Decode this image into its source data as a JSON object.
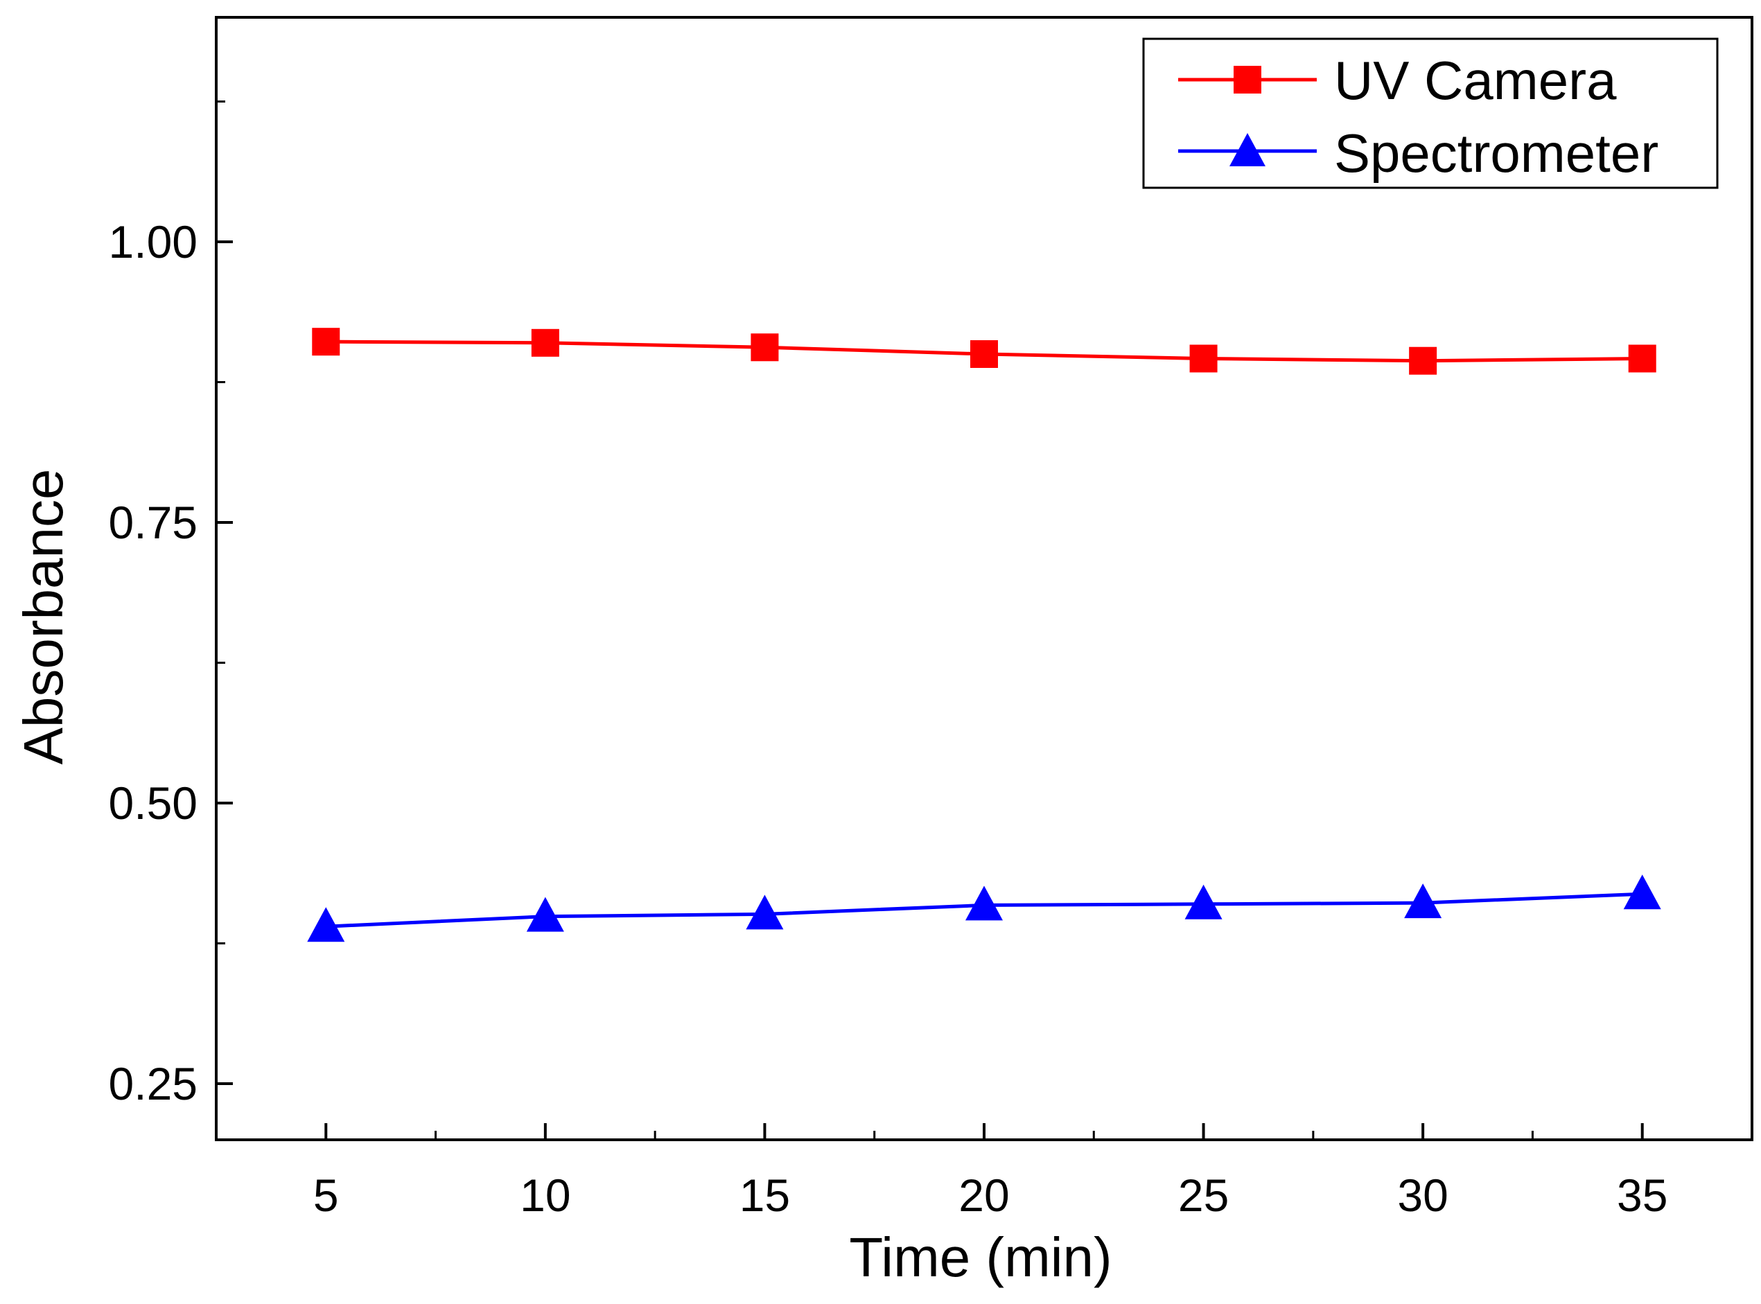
{
  "chart_data": {
    "type": "line",
    "title": "",
    "xlabel": "Time (min)",
    "ylabel": "Absorbance",
    "x": [
      5,
      10,
      15,
      20,
      25,
      30,
      35
    ],
    "xlim": [
      2.5,
      37.5
    ],
    "ylim": [
      0.2,
      1.2
    ],
    "xticks": [
      5,
      10,
      15,
      20,
      25,
      30,
      35
    ],
    "xtick_labels": [
      "5",
      "10",
      "15",
      "20",
      "25",
      "30",
      "35"
    ],
    "yticks": [
      0.25,
      0.5,
      0.75,
      1.0
    ],
    "ytick_labels": [
      "0.25",
      "0.50",
      "0.75",
      "1.00"
    ],
    "grid": false,
    "legend_position": "top-right",
    "series": [
      {
        "name": "UV Camera",
        "color": "#ff0000",
        "marker": "square",
        "values": [
          0.911,
          0.91,
          0.906,
          0.9,
          0.896,
          0.894,
          0.896
        ]
      },
      {
        "name": "Spectrometer",
        "color": "#0000ff",
        "marker": "triangle",
        "values": [
          0.39,
          0.399,
          0.401,
          0.409,
          0.41,
          0.411,
          0.419
        ]
      }
    ]
  }
}
